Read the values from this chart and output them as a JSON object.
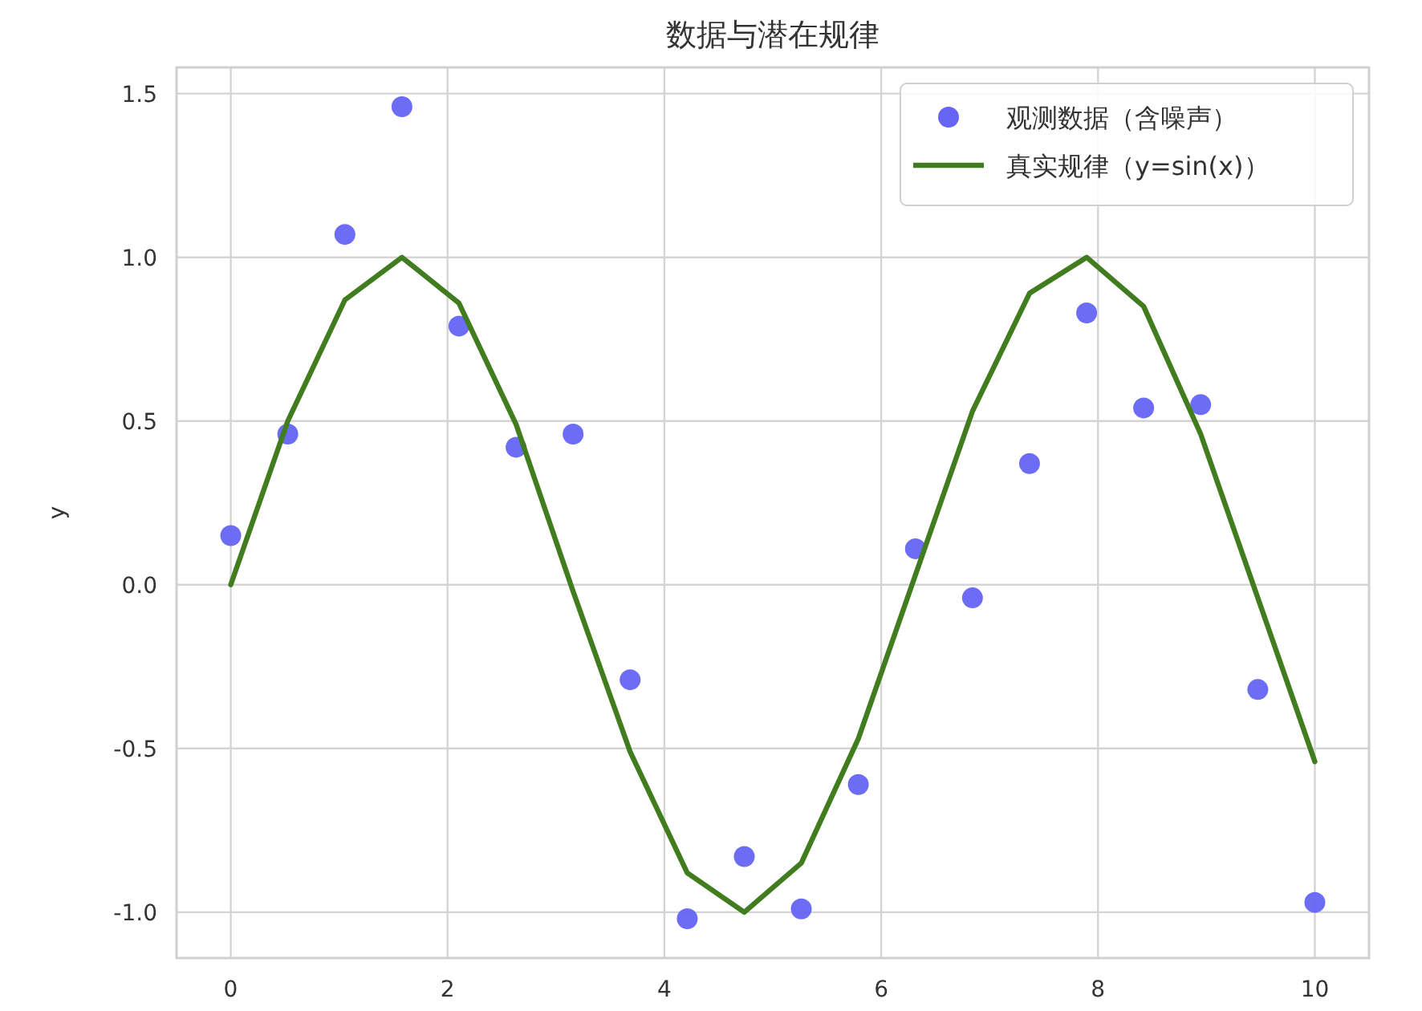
{
  "chart_data": {
    "type": "scatter",
    "title": "数据与潜在规律",
    "ylabel": "y",
    "xlim": [
      -0.5,
      10.5
    ],
    "ylim": [
      -1.14,
      1.58
    ],
    "xticks": [
      0,
      2,
      4,
      6,
      8,
      10
    ],
    "yticks": [
      {
        "value": -1,
        "label": "-1.0"
      },
      {
        "value": -0.5,
        "label": "-0.5"
      },
      {
        "value": 0,
        "label": "0.0"
      },
      {
        "value": 0.5,
        "label": "0.5"
      },
      {
        "value": 1,
        "label": "1.0"
      },
      {
        "value": 1.5,
        "label": "1.5"
      }
    ],
    "grid": true,
    "legend": "top right",
    "x": [
      0,
      0.526,
      1.053,
      1.579,
      2.105,
      2.632,
      3.158,
      3.684,
      4.211,
      4.737,
      5.263,
      5.789,
      6.316,
      6.842,
      7.368,
      7.895,
      8.421,
      8.947,
      9.474,
      10
    ],
    "series": [
      {
        "name": "观测数据（含噪声）",
        "marker": "circle",
        "color": "#6464f5",
        "values": [
          0.15,
          0.46,
          1.07,
          1.46,
          0.79,
          0.42,
          0.46,
          -0.29,
          -1.02,
          -0.83,
          -0.99,
          -0.61,
          0.11,
          -0.04,
          0.37,
          0.83,
          0.54,
          0.55,
          -0.32,
          -0.97
        ]
      },
      {
        "name": "真实规律（y=sin(x)）",
        "type": "line",
        "color": "#417c1f",
        "values": [
          0,
          0.5,
          0.87,
          1.0,
          0.86,
          0.49,
          -0.02,
          -0.51,
          -0.88,
          -1.0,
          -0.85,
          -0.47,
          0.03,
          0.53,
          0.89,
          1.0,
          0.85,
          0.46,
          -0.04,
          -0.54
        ]
      }
    ]
  }
}
